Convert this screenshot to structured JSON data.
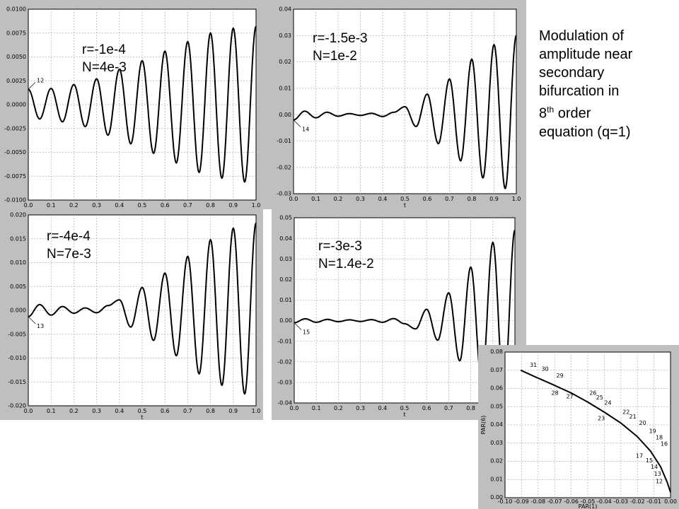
{
  "caption": {
    "line1": "Modulation of",
    "line2": "amplitude near",
    "line3": "secondary",
    "line4": "bifurcation in",
    "line5_num": "8",
    "line5_sup": "th",
    "line5_rest": " order",
    "line6": "equation (q=1)"
  },
  "overlays": [
    {
      "r": "r=-1e-4",
      "n": "N=4e-3"
    },
    {
      "r": "r=-1.5e-3",
      "n": "N=1e-2"
    },
    {
      "r": "r=-4e-4",
      "n": "N=7e-3"
    },
    {
      "r": "r=-3e-3",
      "n": "N=1.4e-2"
    }
  ],
  "chart_data": [
    {
      "type": "line",
      "xlabel": "",
      "ylabel": "",
      "xlim": [
        0.0,
        1.0
      ],
      "ylim": [
        -0.01,
        0.01
      ],
      "x_ticks": [
        "0.0",
        "0.1",
        "0.2",
        "0.3",
        "0.4",
        "0.5",
        "0.6",
        "0.7",
        "0.8",
        "0.9",
        "1.0"
      ],
      "y_ticks": [
        "-0.0100",
        "-0.0075",
        "-0.0050",
        "-0.0025",
        "0.0000",
        "0.0025",
        "0.0050",
        "0.0075",
        "0.0100"
      ],
      "grid": true,
      "annotation": "12",
      "waveform": {
        "y0": 0.0016,
        "base": 0.0018,
        "min_amp": 0.0018,
        "burst_center": 2.5,
        "burst_width": 0.45,
        "grow": 0.0065,
        "frequency": 10,
        "phase_min": 0.0
      },
      "y_at_x": [
        [
          0.0,
          0.0016
        ],
        [
          0.05,
          -0.0015
        ],
        [
          0.1,
          0.0017
        ],
        [
          0.15,
          -0.0018
        ],
        [
          0.2,
          0.0021
        ],
        [
          0.25,
          -0.0023
        ],
        [
          0.3,
          0.0027
        ],
        [
          0.35,
          -0.0032
        ],
        [
          0.4,
          0.0037
        ],
        [
          0.45,
          -0.0041
        ],
        [
          0.5,
          0.0046
        ],
        [
          0.55,
          -0.0051
        ],
        [
          0.6,
          0.0056
        ],
        [
          0.65,
          -0.0061
        ],
        [
          0.7,
          0.0066
        ],
        [
          0.75,
          -0.0071
        ],
        [
          0.8,
          0.0075
        ],
        [
          0.85,
          -0.0077
        ],
        [
          0.9,
          0.008
        ],
        [
          0.95,
          -0.0081
        ],
        [
          1.0,
          0.0082
        ]
      ]
    },
    {
      "type": "line",
      "xlabel": "t",
      "ylabel": "",
      "xlim": [
        0.0,
        1.0
      ],
      "ylim": [
        -0.03,
        0.04
      ],
      "x_ticks": [
        "0.0",
        "0.1",
        "0.2",
        "0.3",
        "0.4",
        "0.5",
        "0.6",
        "0.7",
        "0.8",
        "0.9",
        "1.0"
      ],
      "y_ticks": [
        "-0.03",
        "-0.02",
        "-0.01",
        "0.00",
        "0.01",
        "0.02",
        "0.03",
        "0.04"
      ],
      "grid": true,
      "annotation": "14",
      "y_at_x": [
        [
          0.0,
          -0.002
        ],
        [
          0.05,
          0.0013
        ],
        [
          0.1,
          -0.0012
        ],
        [
          0.15,
          0.0009
        ],
        [
          0.2,
          -0.0006
        ],
        [
          0.25,
          0.0004
        ],
        [
          0.3,
          -0.0003
        ],
        [
          0.35,
          0.0005
        ],
        [
          0.4,
          -0.0007
        ],
        [
          0.45,
          0.0009
        ],
        [
          0.5,
          0.003
        ],
        [
          0.55,
          -0.0045
        ],
        [
          0.6,
          0.0078
        ],
        [
          0.65,
          -0.011
        ],
        [
          0.7,
          0.0135
        ],
        [
          0.75,
          -0.0175
        ],
        [
          0.8,
          0.021
        ],
        [
          0.85,
          -0.024
        ],
        [
          0.9,
          0.0265
        ],
        [
          0.95,
          -0.028
        ],
        [
          1.0,
          0.03
        ]
      ]
    },
    {
      "type": "line",
      "xlabel": "t",
      "ylabel": "",
      "xlim": [
        0.0,
        1.0
      ],
      "ylim": [
        -0.02,
        0.02
      ],
      "x_ticks": [
        "0.0",
        "0.1",
        "0.2",
        "0.3",
        "0.4",
        "0.5",
        "0.6",
        "0.7",
        "0.8",
        "0.9",
        "1.0"
      ],
      "y_ticks": [
        "-0.020",
        "-0.015",
        "-0.010",
        "-0.005",
        "0.000",
        "0.005",
        "0.010",
        "0.015",
        "0.020"
      ],
      "grid": true,
      "annotation": "13",
      "y_at_x": [
        [
          0.0,
          -0.0013
        ],
        [
          0.05,
          0.0012
        ],
        [
          0.1,
          -0.001
        ],
        [
          0.15,
          0.0008
        ],
        [
          0.2,
          -0.0006
        ],
        [
          0.25,
          0.0005
        ],
        [
          0.3,
          -0.0005
        ],
        [
          0.35,
          0.001
        ],
        [
          0.4,
          0.0022
        ],
        [
          0.45,
          -0.0035
        ],
        [
          0.5,
          0.0048
        ],
        [
          0.55,
          -0.0063
        ],
        [
          0.6,
          0.0078
        ],
        [
          0.65,
          -0.0095
        ],
        [
          0.7,
          0.0113
        ],
        [
          0.75,
          -0.0133
        ],
        [
          0.8,
          0.0148
        ],
        [
          0.85,
          -0.0157
        ],
        [
          0.9,
          0.0172
        ],
        [
          0.95,
          -0.0175
        ],
        [
          1.0,
          0.0183
        ]
      ]
    },
    {
      "type": "line",
      "xlabel": "t",
      "ylabel": "",
      "xlim": [
        0.0,
        1.0
      ],
      "ylim": [
        -0.04,
        0.05
      ],
      "x_ticks": [
        "0.0",
        "0.1",
        "0.2",
        "0.3",
        "0.4",
        "0.5",
        "0.6",
        "0.7",
        "0.8",
        "0.9",
        "1.0"
      ],
      "y_ticks": [
        "-0.04",
        "-0.03",
        "-0.02",
        "-0.01",
        "0.00",
        "0.01",
        "0.02",
        "0.03",
        "0.04",
        "0.05"
      ],
      "grid": true,
      "annotation": "15",
      "y_at_x": [
        [
          0.0,
          -0.001
        ],
        [
          0.05,
          0.0009
        ],
        [
          0.1,
          -0.0008
        ],
        [
          0.15,
          0.0006
        ],
        [
          0.2,
          -0.0005
        ],
        [
          0.25,
          0.0004
        ],
        [
          0.3,
          -0.0004
        ],
        [
          0.35,
          0.0005
        ],
        [
          0.4,
          -0.0008
        ],
        [
          0.45,
          0.001
        ],
        [
          0.5,
          -0.0015
        ],
        [
          0.55,
          -0.004
        ],
        [
          0.6,
          0.0055
        ],
        [
          0.65,
          -0.0095
        ],
        [
          0.7,
          0.0135
        ],
        [
          0.75,
          -0.0195
        ],
        [
          0.8,
          0.026
        ],
        [
          0.85,
          -0.03
        ],
        [
          0.9,
          0.038
        ],
        [
          0.95,
          -0.035
        ],
        [
          1.0,
          0.044
        ]
      ]
    },
    {
      "type": "line",
      "xlabel": "PAR(1)",
      "ylabel": "PAR(6)",
      "xlim": [
        -0.1,
        0.0
      ],
      "ylim": [
        0.0,
        0.08
      ],
      "x_ticks": [
        "-0.10",
        "-0.09",
        "-0.08",
        "-0.07",
        "-0.06",
        "-0.05",
        "-0.04",
        "-0.03",
        "-0.02",
        "-0.01",
        "0.00"
      ],
      "y_ticks": [
        "0.00",
        "0.01",
        "0.02",
        "0.03",
        "0.04",
        "0.05",
        "0.06",
        "0.07",
        "0.08"
      ],
      "grid": true,
      "points": [
        {
          "x": -0.0905,
          "y": 0.07
        },
        {
          "x": -0.082,
          "y": 0.0665
        },
        {
          "x": -0.072,
          "y": 0.0625
        },
        {
          "x": -0.06,
          "y": 0.0575
        },
        {
          "x": -0.05,
          "y": 0.0525
        },
        {
          "x": -0.04,
          "y": 0.047
        },
        {
          "x": -0.03,
          "y": 0.041
        },
        {
          "x": -0.02,
          "y": 0.0335
        },
        {
          "x": -0.012,
          "y": 0.0255
        },
        {
          "x": -0.006,
          "y": 0.017
        },
        {
          "x": -0.002,
          "y": 0.0085
        },
        {
          "x": 0.0,
          "y": 0.003
        }
      ],
      "labels": [
        {
          "t": "31",
          "x": -0.085,
          "y": 0.0718
        },
        {
          "t": "30",
          "x": -0.078,
          "y": 0.0698
        },
        {
          "t": "29",
          "x": -0.069,
          "y": 0.066
        },
        {
          "t": "28",
          "x": -0.072,
          "y": 0.0565
        },
        {
          "t": "27",
          "x": -0.063,
          "y": 0.0545
        },
        {
          "t": "26",
          "x": -0.049,
          "y": 0.0565
        },
        {
          "t": "25",
          "x": -0.045,
          "y": 0.054
        },
        {
          "t": "24",
          "x": -0.04,
          "y": 0.051
        },
        {
          "t": "23",
          "x": -0.044,
          "y": 0.0425
        },
        {
          "t": "22",
          "x": -0.029,
          "y": 0.046
        },
        {
          "t": "21",
          "x": -0.025,
          "y": 0.0435
        },
        {
          "t": "20",
          "x": -0.019,
          "y": 0.04
        },
        {
          "t": "19",
          "x": -0.013,
          "y": 0.0355
        },
        {
          "t": "18",
          "x": -0.009,
          "y": 0.032
        },
        {
          "t": "16",
          "x": -0.006,
          "y": 0.0285
        },
        {
          "t": "17",
          "x": -0.021,
          "y": 0.022
        },
        {
          "t": "15",
          "x": -0.015,
          "y": 0.0195
        },
        {
          "t": "14",
          "x": -0.012,
          "y": 0.016
        },
        {
          "t": "13",
          "x": -0.01,
          "y": 0.012
        },
        {
          "t": "12",
          "x": -0.009,
          "y": 0.008
        }
      ]
    }
  ]
}
